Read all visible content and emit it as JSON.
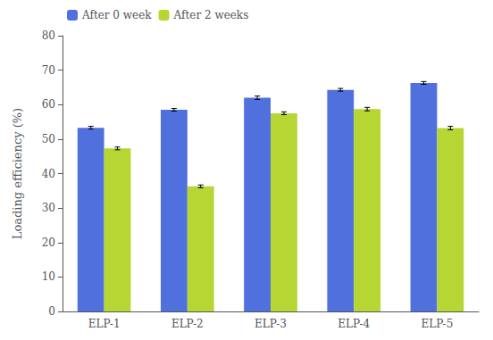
{
  "chart_data": {
    "type": "bar",
    "categories": [
      "ELP-1",
      "ELP-2",
      "ELP-3",
      "ELP-4",
      "ELP-5"
    ],
    "series": [
      {
        "name": "After 0 week",
        "values": [
          53.3,
          58.5,
          62.0,
          64.3,
          66.3
        ],
        "errors": [
          0.4,
          0.4,
          0.5,
          0.4,
          0.4
        ]
      },
      {
        "name": "After 2 weeks",
        "values": [
          47.3,
          36.3,
          57.5,
          58.7,
          53.2
        ],
        "errors": [
          0.4,
          0.4,
          0.4,
          0.5,
          0.5
        ]
      }
    ],
    "ylabel": "Loading efficiency (%)",
    "ylim": [
      0,
      80
    ],
    "yticks": [
      0,
      10,
      20,
      30,
      40,
      50,
      60,
      70,
      80
    ],
    "legend": "upper left",
    "grid": false
  }
}
